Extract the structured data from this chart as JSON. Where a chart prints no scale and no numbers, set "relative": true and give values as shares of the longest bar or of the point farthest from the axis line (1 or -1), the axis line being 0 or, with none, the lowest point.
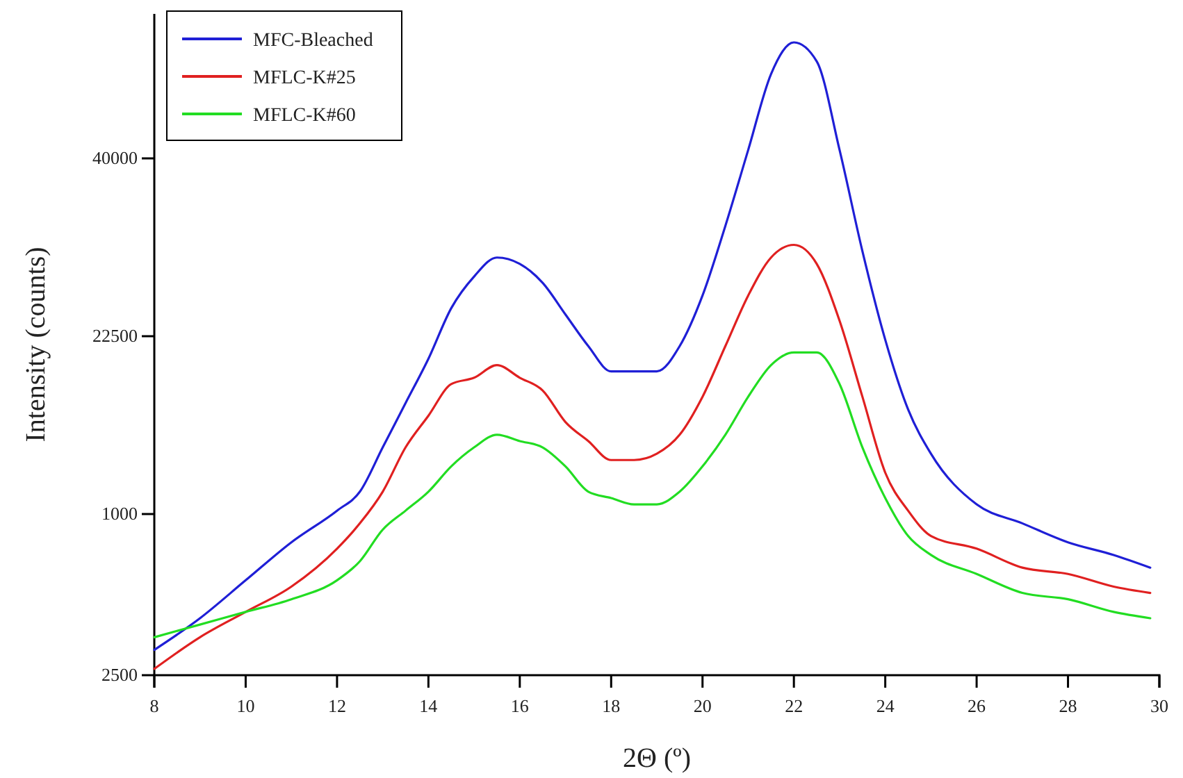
{
  "chart_data": {
    "type": "line",
    "relative": true,
    "xlabel": "2Θ (º)",
    "ylabel": "Intensity (counts)",
    "xlim": [
      8,
      30
    ],
    "xticks": [
      8,
      10,
      12,
      14,
      16,
      18,
      20,
      22,
      24,
      26,
      28,
      30
    ],
    "annotations": [
      "40000",
      "22500",
      "1000",
      "2500"
    ],
    "legend": "top left",
    "line_style": "solid",
    "x": [
      8,
      9,
      10,
      11,
      12,
      12.5,
      13,
      13.5,
      14,
      14.5,
      15,
      15.5,
      16,
      16.5,
      17,
      17.5,
      18,
      18.5,
      19,
      19.5,
      20,
      20.5,
      21,
      21.5,
      22,
      22.5,
      23,
      23.5,
      24,
      24.5,
      25,
      26,
      27,
      28,
      29,
      29.8
    ],
    "series": [
      {
        "name": "MFC-Bleached",
        "color": "#1f1fd6",
        "values": [
          0.04,
          0.09,
          0.15,
          0.21,
          0.26,
          0.29,
          0.36,
          0.43,
          0.5,
          0.58,
          0.63,
          0.66,
          0.65,
          0.62,
          0.57,
          0.52,
          0.48,
          0.48,
          0.48,
          0.52,
          0.6,
          0.71,
          0.83,
          0.95,
          1,
          0.97,
          0.83,
          0.67,
          0.53,
          0.42,
          0.35,
          0.27,
          0.24,
          0.21,
          0.19,
          0.17
        ]
      },
      {
        "name": "MFLC-K#25",
        "color": "#e02020",
        "values": [
          0.01,
          0.06,
          0.1,
          0.14,
          0.2,
          0.24,
          0.29,
          0.36,
          0.41,
          0.46,
          0.47,
          0.49,
          0.47,
          0.45,
          0.4,
          0.37,
          0.34,
          0.34,
          0.35,
          0.38,
          0.44,
          0.52,
          0.6,
          0.66,
          0.68,
          0.65,
          0.56,
          0.44,
          0.32,
          0.26,
          0.22,
          0.2,
          0.17,
          0.16,
          0.14,
          0.13
        ]
      },
      {
        "name": "MFLC-K#60",
        "color": "#22dd22",
        "values": [
          0.06,
          0.08,
          0.1,
          0.12,
          0.15,
          0.18,
          0.23,
          0.26,
          0.29,
          0.33,
          0.36,
          0.38,
          0.37,
          0.36,
          0.33,
          0.29,
          0.28,
          0.27,
          0.27,
          0.29,
          0.33,
          0.38,
          0.44,
          0.49,
          0.51,
          0.51,
          0.46,
          0.36,
          0.28,
          0.22,
          0.19,
          0.16,
          0.13,
          0.12,
          0.1,
          0.09
        ]
      }
    ]
  }
}
